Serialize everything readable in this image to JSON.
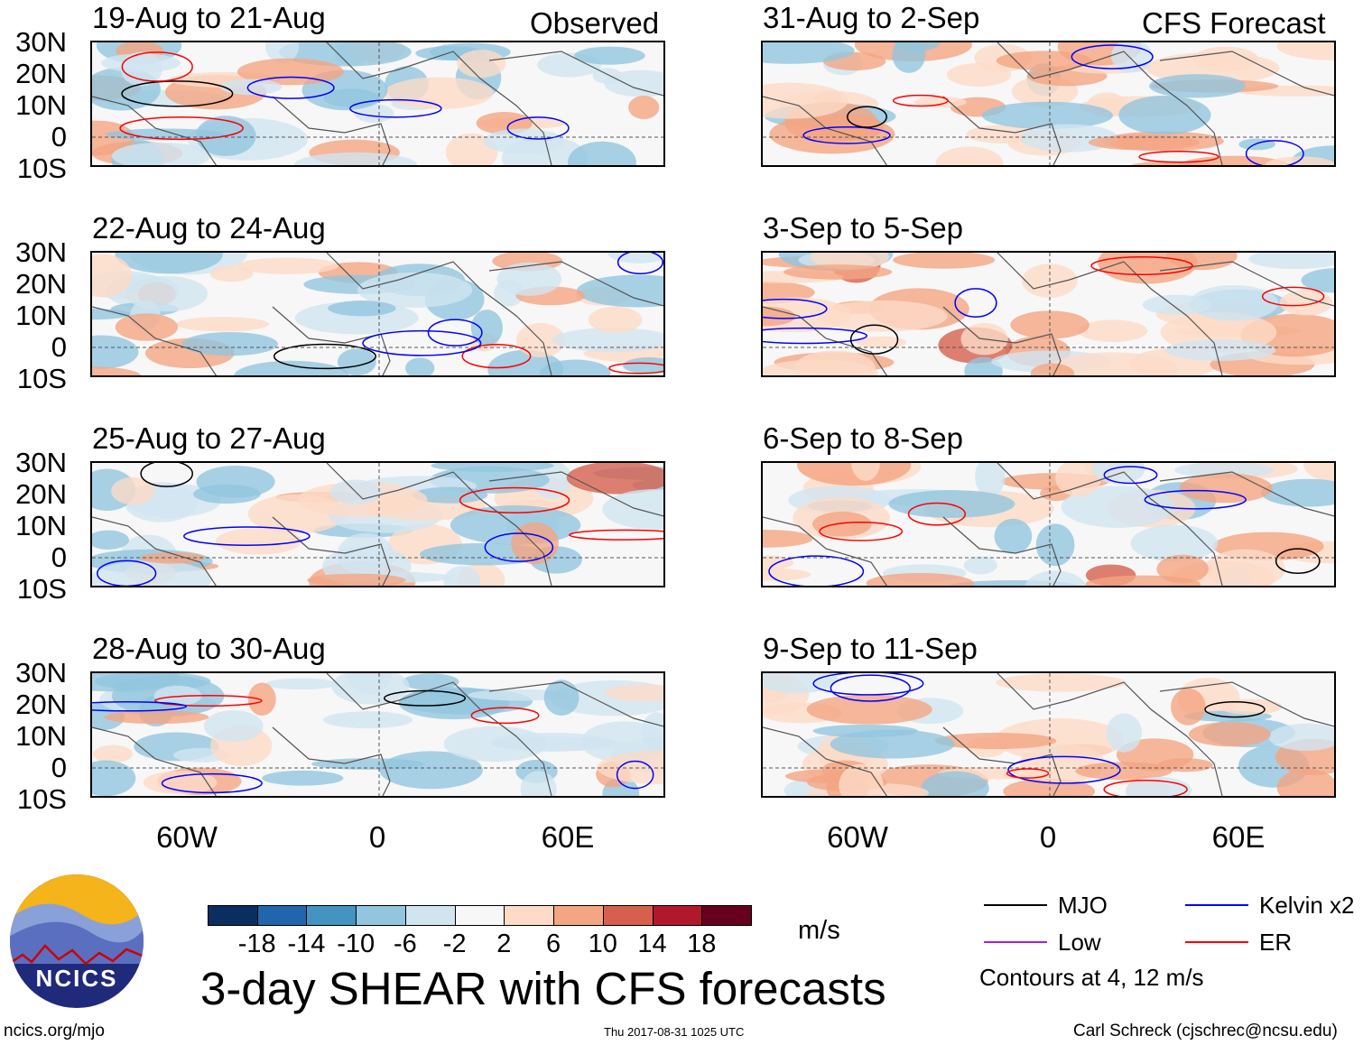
{
  "headers": {
    "left": "Observed",
    "right": "CFS Forecast"
  },
  "panels": [
    {
      "title": "19-Aug to 21-Aug",
      "column": "observed"
    },
    {
      "title": "22-Aug to 24-Aug",
      "column": "observed"
    },
    {
      "title": "25-Aug to 27-Aug",
      "column": "observed"
    },
    {
      "title": "28-Aug to 30-Aug",
      "column": "observed"
    },
    {
      "title": "31-Aug to 2-Sep",
      "column": "forecast"
    },
    {
      "title": "3-Sep to 5-Sep",
      "column": "forecast"
    },
    {
      "title": "6-Sep to 8-Sep",
      "column": "forecast"
    },
    {
      "title": "9-Sep to 11-Sep",
      "column": "forecast"
    }
  ],
  "lat_labels": [
    "30N",
    "20N",
    "10N",
    "0",
    "10S"
  ],
  "lon_labels": [
    "60W",
    "0",
    "60E"
  ],
  "colorbar": {
    "labels": [
      "-18",
      "-14",
      "-10",
      "-6",
      "-2",
      "2",
      "6",
      "10",
      "14",
      "18"
    ],
    "colors": [
      "#0b2e61",
      "#2166ac",
      "#4393c3",
      "#92c5de",
      "#d1e5f0",
      "#f7f7f7",
      "#fddbc7",
      "#f4a582",
      "#d6604d",
      "#b2182b",
      "#67001f"
    ],
    "units": "m/s"
  },
  "title": "3-day SHEAR with CFS forecasts",
  "legend": {
    "items": [
      {
        "label": "MJO",
        "color": "#000000"
      },
      {
        "label": "Kelvin x2",
        "color": "#0000ff"
      },
      {
        "label": "Low",
        "color": "#a020f0"
      },
      {
        "label": "ER",
        "color": "#ff0000"
      }
    ],
    "note": "Contours at 4, 12 m/s"
  },
  "logo_text": "NCICS",
  "footer": {
    "left": "ncics.org/mjo",
    "center": "Thu 2017-08-31 1025 UTC",
    "right": "Carl Schreck (cjschrec@ncsu.edu)"
  }
}
